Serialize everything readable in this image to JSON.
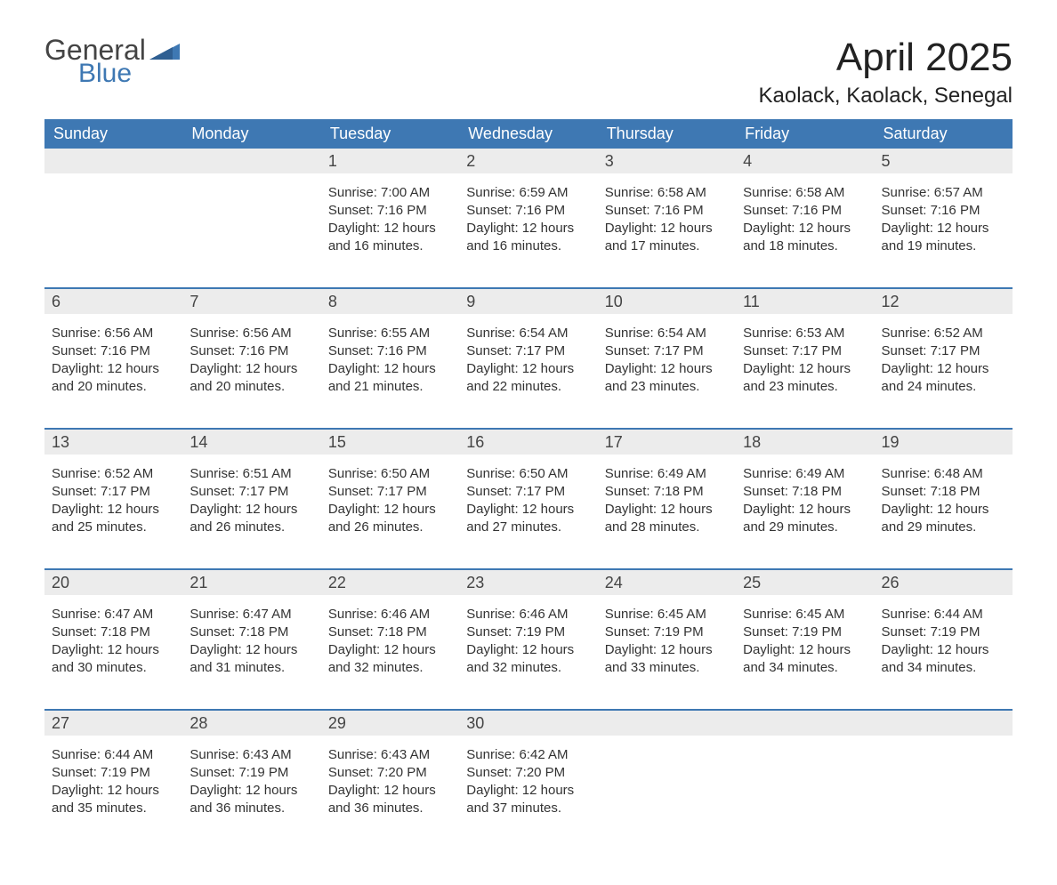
{
  "logo": {
    "top": "General",
    "bottom": "Blue"
  },
  "title": "April 2025",
  "location": "Kaolack, Kaolack, Senegal",
  "colors": {
    "header_bg": "#3e78b3",
    "header_text": "#ffffff",
    "daynum_bg": "#ececec",
    "row_border": "#3e78b3",
    "body_bg": "#ffffff",
    "text": "#333333",
    "logo_blue": "#3e78b3"
  },
  "day_labels": [
    "Sunday",
    "Monday",
    "Tuesday",
    "Wednesday",
    "Thursday",
    "Friday",
    "Saturday"
  ],
  "weeks": [
    [
      null,
      null,
      {
        "n": "1",
        "sunrise": "7:00 AM",
        "sunset": "7:16 PM",
        "daylight": "12 hours and 16 minutes."
      },
      {
        "n": "2",
        "sunrise": "6:59 AM",
        "sunset": "7:16 PM",
        "daylight": "12 hours and 16 minutes."
      },
      {
        "n": "3",
        "sunrise": "6:58 AM",
        "sunset": "7:16 PM",
        "daylight": "12 hours and 17 minutes."
      },
      {
        "n": "4",
        "sunrise": "6:58 AM",
        "sunset": "7:16 PM",
        "daylight": "12 hours and 18 minutes."
      },
      {
        "n": "5",
        "sunrise": "6:57 AM",
        "sunset": "7:16 PM",
        "daylight": "12 hours and 19 minutes."
      }
    ],
    [
      {
        "n": "6",
        "sunrise": "6:56 AM",
        "sunset": "7:16 PM",
        "daylight": "12 hours and 20 minutes."
      },
      {
        "n": "7",
        "sunrise": "6:56 AM",
        "sunset": "7:16 PM",
        "daylight": "12 hours and 20 minutes."
      },
      {
        "n": "8",
        "sunrise": "6:55 AM",
        "sunset": "7:16 PM",
        "daylight": "12 hours and 21 minutes."
      },
      {
        "n": "9",
        "sunrise": "6:54 AM",
        "sunset": "7:17 PM",
        "daylight": "12 hours and 22 minutes."
      },
      {
        "n": "10",
        "sunrise": "6:54 AM",
        "sunset": "7:17 PM",
        "daylight": "12 hours and 23 minutes."
      },
      {
        "n": "11",
        "sunrise": "6:53 AM",
        "sunset": "7:17 PM",
        "daylight": "12 hours and 23 minutes."
      },
      {
        "n": "12",
        "sunrise": "6:52 AM",
        "sunset": "7:17 PM",
        "daylight": "12 hours and 24 minutes."
      }
    ],
    [
      {
        "n": "13",
        "sunrise": "6:52 AM",
        "sunset": "7:17 PM",
        "daylight": "12 hours and 25 minutes."
      },
      {
        "n": "14",
        "sunrise": "6:51 AM",
        "sunset": "7:17 PM",
        "daylight": "12 hours and 26 minutes."
      },
      {
        "n": "15",
        "sunrise": "6:50 AM",
        "sunset": "7:17 PM",
        "daylight": "12 hours and 26 minutes."
      },
      {
        "n": "16",
        "sunrise": "6:50 AM",
        "sunset": "7:17 PM",
        "daylight": "12 hours and 27 minutes."
      },
      {
        "n": "17",
        "sunrise": "6:49 AM",
        "sunset": "7:18 PM",
        "daylight": "12 hours and 28 minutes."
      },
      {
        "n": "18",
        "sunrise": "6:49 AM",
        "sunset": "7:18 PM",
        "daylight": "12 hours and 29 minutes."
      },
      {
        "n": "19",
        "sunrise": "6:48 AM",
        "sunset": "7:18 PM",
        "daylight": "12 hours and 29 minutes."
      }
    ],
    [
      {
        "n": "20",
        "sunrise": "6:47 AM",
        "sunset": "7:18 PM",
        "daylight": "12 hours and 30 minutes."
      },
      {
        "n": "21",
        "sunrise": "6:47 AM",
        "sunset": "7:18 PM",
        "daylight": "12 hours and 31 minutes."
      },
      {
        "n": "22",
        "sunrise": "6:46 AM",
        "sunset": "7:18 PM",
        "daylight": "12 hours and 32 minutes."
      },
      {
        "n": "23",
        "sunrise": "6:46 AM",
        "sunset": "7:19 PM",
        "daylight": "12 hours and 32 minutes."
      },
      {
        "n": "24",
        "sunrise": "6:45 AM",
        "sunset": "7:19 PM",
        "daylight": "12 hours and 33 minutes."
      },
      {
        "n": "25",
        "sunrise": "6:45 AM",
        "sunset": "7:19 PM",
        "daylight": "12 hours and 34 minutes."
      },
      {
        "n": "26",
        "sunrise": "6:44 AM",
        "sunset": "7:19 PM",
        "daylight": "12 hours and 34 minutes."
      }
    ],
    [
      {
        "n": "27",
        "sunrise": "6:44 AM",
        "sunset": "7:19 PM",
        "daylight": "12 hours and 35 minutes."
      },
      {
        "n": "28",
        "sunrise": "6:43 AM",
        "sunset": "7:19 PM",
        "daylight": "12 hours and 36 minutes."
      },
      {
        "n": "29",
        "sunrise": "6:43 AM",
        "sunset": "7:20 PM",
        "daylight": "12 hours and 36 minutes."
      },
      {
        "n": "30",
        "sunrise": "6:42 AM",
        "sunset": "7:20 PM",
        "daylight": "12 hours and 37 minutes."
      },
      null,
      null,
      null
    ]
  ],
  "labels": {
    "sunrise": "Sunrise: ",
    "sunset": "Sunset: ",
    "daylight": "Daylight: "
  }
}
